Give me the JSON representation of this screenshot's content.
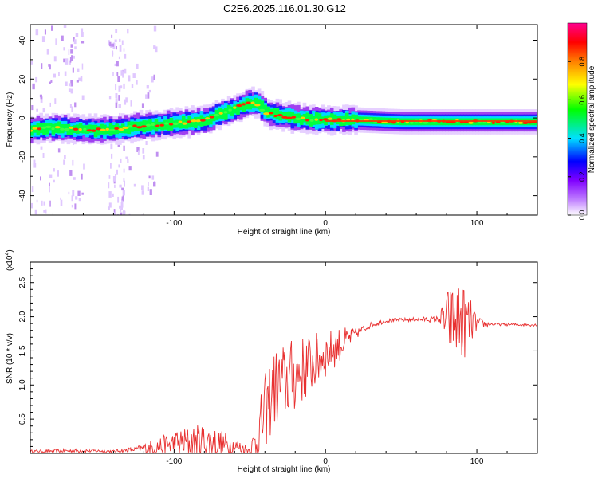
{
  "title": "C2E6.2025.116.01.30.G12",
  "chart_data": [
    {
      "type": "heatmap",
      "xlabel": "Height of straight line (km)",
      "ylabel": "Frequency (Hz)",
      "xlim": [
        -195,
        140
      ],
      "ylim": [
        -50,
        48
      ],
      "x_ticks": [
        -100,
        0,
        100
      ],
      "x_tick_labels": [
        "-100",
        "0",
        "100"
      ],
      "y_ticks": [
        -40,
        -20,
        0,
        20,
        40
      ],
      "y_tick_labels": [
        "-40",
        "-20",
        "0",
        "20",
        "40"
      ],
      "ridge": {
        "x": [
          -195,
          -180,
          -160,
          -140,
          -120,
          -100,
          -80,
          -70,
          -60,
          -50,
          -45,
          -40,
          -35,
          -30,
          -20,
          -10,
          0,
          20,
          50,
          80,
          100,
          140
        ],
        "y": [
          -6,
          -5,
          -6,
          -6,
          -4,
          -3,
          -1,
          2,
          5,
          8,
          7,
          3,
          2,
          1,
          0,
          -1,
          -1,
          -1,
          -2,
          -2,
          -2,
          -2
        ]
      },
      "colorbar": {
        "label": "Normalized spectral amplitude",
        "range": [
          0,
          1
        ],
        "ticks": [
          0.0,
          0.2,
          0.4,
          0.6,
          0.8
        ],
        "tick_labels": [
          "0.0",
          "0.2",
          "0.4",
          "0.6",
          "0.8"
        ],
        "colors": [
          "#ffffff",
          "#a020f0",
          "#0000ff",
          "#00ffff",
          "#00ff00",
          "#ffff00",
          "#ff8000",
          "#ff0000",
          "#ff0090"
        ]
      }
    },
    {
      "type": "line",
      "xlabel": "Height of straight line (km)",
      "ylabel": "SNR (10 * v/v)",
      "y_multiplier_label": "(x10",
      "y_multiplier_exp": "4",
      "y_multiplier_close": ")",
      "xlim": [
        -195,
        140
      ],
      "ylim": [
        0,
        2.8
      ],
      "x_ticks": [
        -100,
        0,
        100
      ],
      "x_tick_labels": [
        "-100",
        "0",
        "100"
      ],
      "y_ticks": [
        0.5,
        1.0,
        1.5,
        2.0,
        2.5
      ],
      "y_tick_labels": [
        "0.5",
        "1.0",
        "1.5",
        "2.0",
        "2.5"
      ],
      "color": "#e83030",
      "envelope": {
        "x": [
          -195,
          -160,
          -140,
          -125,
          -110,
          -100,
          -90,
          -80,
          -70,
          -60,
          -50,
          -45,
          -40,
          -35,
          -30,
          -20,
          -10,
          0,
          10,
          20,
          30,
          40,
          60,
          75,
          80,
          85,
          90,
          95,
          100,
          110,
          140
        ],
        "base": [
          0.03,
          0.04,
          0.03,
          0.06,
          0.1,
          0.14,
          0.16,
          0.18,
          0.14,
          0.1,
          0.05,
          0.2,
          0.6,
          0.9,
          1.0,
          1.15,
          1.3,
          1.45,
          1.6,
          1.75,
          1.88,
          1.94,
          1.96,
          1.96,
          1.95,
          1.93,
          1.92,
          1.91,
          1.9,
          1.89,
          1.88
        ],
        "amp": [
          0.02,
          0.03,
          0.02,
          0.04,
          0.14,
          0.2,
          0.24,
          0.26,
          0.22,
          0.14,
          0.05,
          0.4,
          0.55,
          0.6,
          0.6,
          0.55,
          0.45,
          0.35,
          0.25,
          0.08,
          0.04,
          0.03,
          0.03,
          0.05,
          0.45,
          0.55,
          0.6,
          0.4,
          0.1,
          0.02,
          0.02
        ]
      }
    }
  ]
}
